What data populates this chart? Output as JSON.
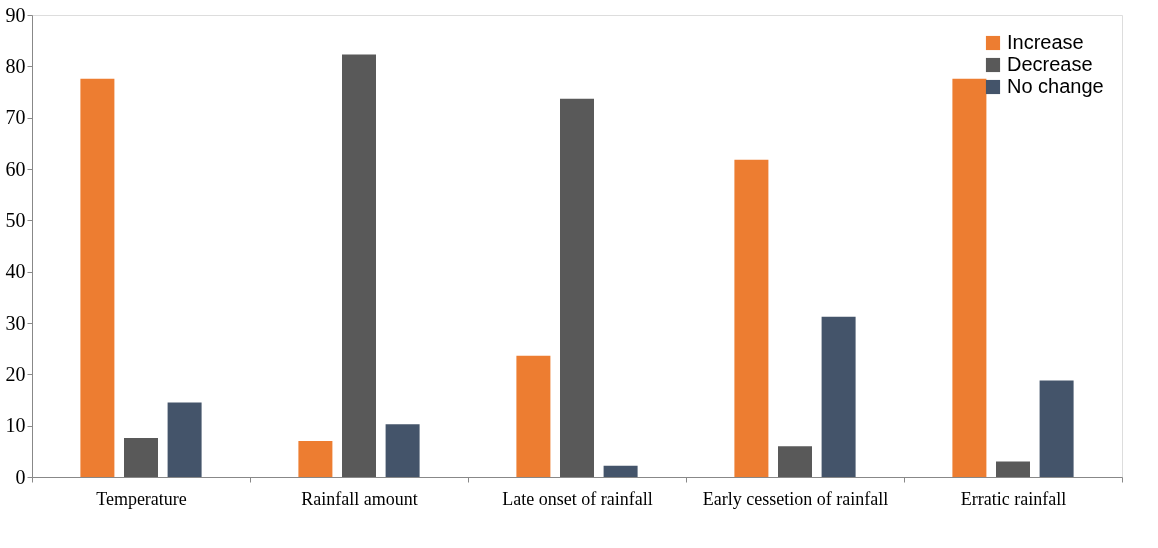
{
  "chart_data": {
    "type": "bar",
    "categories": [
      "Temperature",
      "Rainfall amount",
      "Late onset of rainfall",
      "Early cessetion of rainfall",
      "Erratic rainfall"
    ],
    "series": [
      {
        "name": "Increase",
        "color": "#ed7d31",
        "values": [
          77.6,
          7.0,
          23.6,
          61.8,
          77.6
        ]
      },
      {
        "name": "Decrease",
        "color": "#595959",
        "values": [
          7.6,
          82.3,
          73.7,
          6.0,
          3.0
        ]
      },
      {
        "name": "No change",
        "color": "#44546a",
        "values": [
          14.5,
          10.3,
          2.2,
          31.2,
          18.8
        ]
      }
    ],
    "ylim": [
      0,
      90
    ],
    "yticks": [
      0,
      10,
      20,
      30,
      40,
      50,
      60,
      70,
      80,
      90
    ],
    "grid": false,
    "legend": "top right"
  }
}
